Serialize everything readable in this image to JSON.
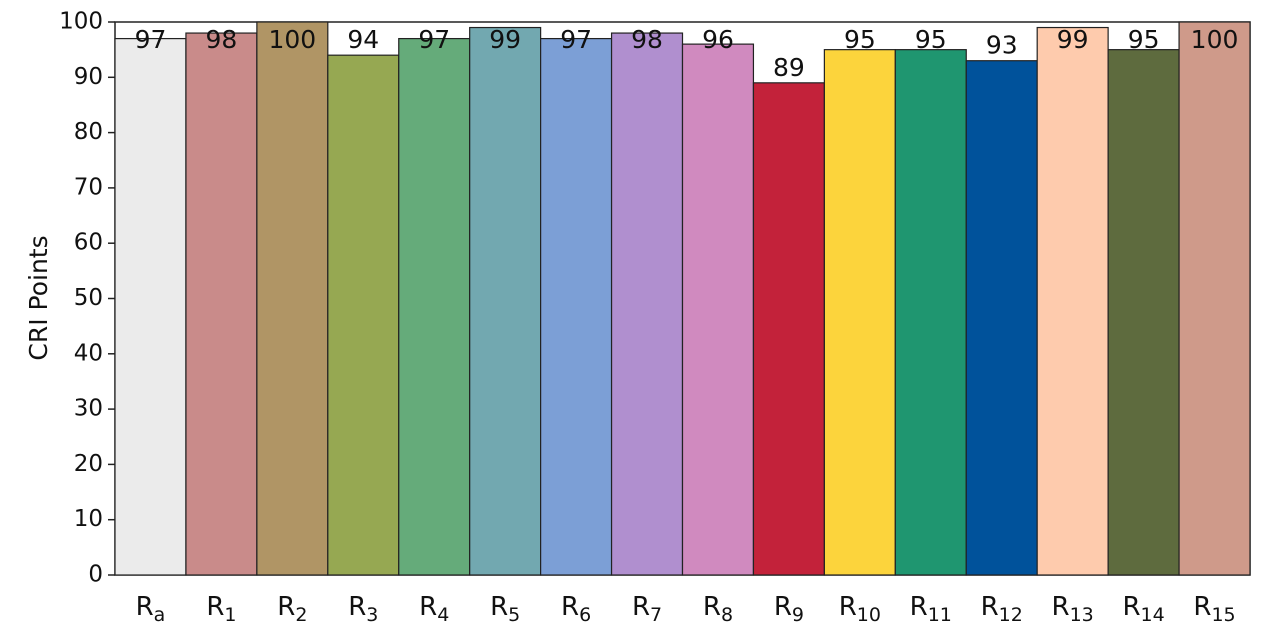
{
  "chart_data": {
    "type": "bar",
    "y_label": "CRI Points",
    "categories": [
      "Ra",
      "R1",
      "R2",
      "R3",
      "R4",
      "R5",
      "R6",
      "R7",
      "R8",
      "R9",
      "R10",
      "R11",
      "R12",
      "R13",
      "R14",
      "R15"
    ],
    "values": [
      97,
      98,
      100,
      94,
      97,
      99,
      97,
      98,
      96,
      89,
      95,
      95,
      93,
      99,
      95,
      100
    ],
    "colors": [
      "#ebebeb",
      "#c98b8a",
      "#b09565",
      "#96a852",
      "#65ab7a",
      "#72a8b0",
      "#7c9fd6",
      "#b08fcf",
      "#d08abf",
      "#c3223a",
      "#fcd43c",
      "#1f9670",
      "#00529b",
      "#fecbad",
      "#5e6b3e",
      "#cf9a8a"
    ],
    "ylim": [
      0,
      100
    ],
    "yticks": [
      0,
      10,
      20,
      30,
      40,
      50,
      60,
      70,
      80,
      90,
      100
    ]
  }
}
